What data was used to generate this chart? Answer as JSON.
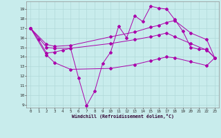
{
  "xlabel": "Windchill (Refroidissement éolien,°C)",
  "background_color": "#c8ecec",
  "grid_color": "#b0d8d8",
  "line_color": "#aa00aa",
  "xlim": [
    -0.5,
    23.5
  ],
  "ylim": [
    8.7,
    19.8
  ],
  "yticks": [
    9,
    10,
    11,
    12,
    13,
    14,
    15,
    16,
    17,
    18,
    19
  ],
  "xticks": [
    0,
    1,
    2,
    3,
    4,
    5,
    6,
    7,
    8,
    9,
    10,
    11,
    12,
    13,
    14,
    15,
    16,
    17,
    18,
    19,
    20,
    21,
    22,
    23
  ],
  "curve1_x": [
    0,
    1,
    2,
    3,
    4,
    5,
    6,
    7,
    8,
    9,
    10,
    11,
    12,
    13,
    14,
    15,
    16,
    17,
    18,
    19,
    20,
    21,
    22,
    23
  ],
  "curve1_y": [
    17.0,
    15.8,
    14.4,
    14.5,
    14.7,
    14.9,
    11.8,
    8.9,
    10.4,
    13.3,
    14.5,
    17.2,
    16.0,
    18.3,
    17.7,
    19.3,
    19.1,
    19.0,
    17.9,
    16.7,
    15.0,
    14.8,
    14.8,
    13.9
  ],
  "curve2_x": [
    0,
    2,
    3,
    5,
    10,
    13,
    15,
    16,
    17,
    18,
    20,
    22,
    23
  ],
  "curve2_y": [
    17.0,
    15.3,
    15.1,
    15.2,
    16.1,
    16.6,
    17.1,
    17.3,
    17.6,
    17.8,
    16.5,
    15.8,
    13.9
  ],
  "curve3_x": [
    0,
    2,
    3,
    5,
    10,
    13,
    15,
    16,
    17,
    18,
    20,
    22,
    23
  ],
  "curve3_y": [
    17.0,
    15.0,
    14.9,
    14.9,
    15.4,
    15.8,
    16.1,
    16.3,
    16.5,
    16.1,
    15.4,
    14.7,
    13.9
  ],
  "curve4_x": [
    0,
    2,
    3,
    5,
    10,
    13,
    15,
    16,
    17,
    18,
    20,
    22,
    23
  ],
  "curve4_y": [
    17.0,
    14.2,
    13.4,
    12.7,
    12.8,
    13.2,
    13.6,
    13.8,
    14.0,
    13.9,
    13.5,
    13.1,
    13.9
  ]
}
